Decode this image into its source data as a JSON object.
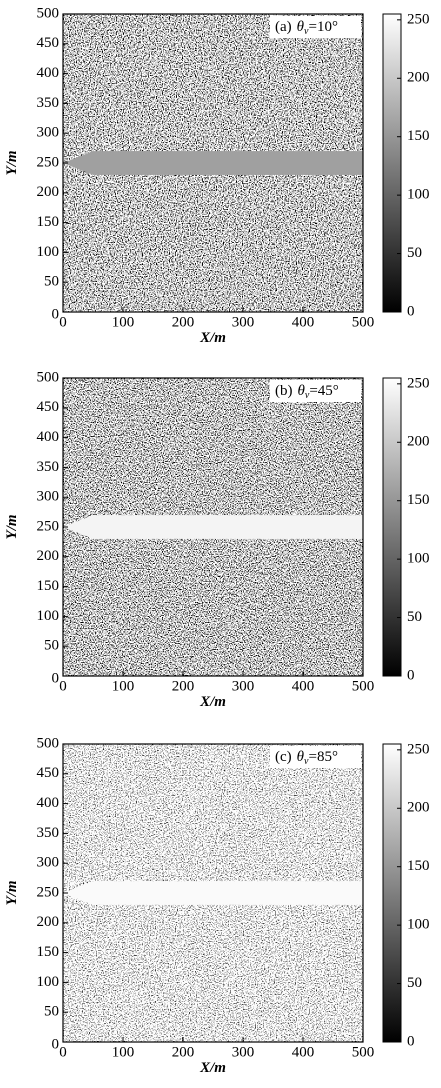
{
  "chart_data": [
    {
      "type": "heatmap",
      "panel_label": "(a)",
      "symbol": "θ",
      "symbol_subscript": "v",
      "parameter_value": "=10°",
      "xlabel": "X/m",
      "ylabel": "Y/m",
      "xlim": [
        0,
        500
      ],
      "xticks": [
        0,
        100,
        200,
        300,
        400,
        500
      ],
      "ylim": [
        0,
        500
      ],
      "yticks": [
        0,
        50,
        100,
        150,
        200,
        250,
        300,
        350,
        400,
        450,
        500
      ],
      "colorbar_lim": [
        0,
        255
      ],
      "colorbar_ticks": [
        0,
        50,
        100,
        150,
        200,
        250
      ],
      "colormap": "gray"
    },
    {
      "type": "heatmap",
      "panel_label": "(b)",
      "symbol": "θ",
      "symbol_subscript": "v",
      "parameter_value": "=45°",
      "xlabel": "X/m",
      "ylabel": "Y/m",
      "xlim": [
        0,
        500
      ],
      "xticks": [
        0,
        100,
        200,
        300,
        400,
        500
      ],
      "ylim": [
        0,
        500
      ],
      "yticks": [
        0,
        50,
        100,
        150,
        200,
        250,
        300,
        350,
        400,
        450,
        500
      ],
      "colorbar_lim": [
        0,
        255
      ],
      "colorbar_ticks": [
        0,
        50,
        100,
        150,
        200,
        250
      ],
      "colormap": "gray"
    },
    {
      "type": "heatmap",
      "panel_label": "(c)",
      "symbol": "θ",
      "symbol_subscript": "v",
      "parameter_value": "=85°",
      "xlabel": "X/m",
      "ylabel": "Y/m",
      "xlim": [
        0,
        500
      ],
      "xticks": [
        0,
        100,
        200,
        300,
        400,
        500
      ],
      "ylim": [
        0,
        500
      ],
      "yticks": [
        0,
        50,
        100,
        150,
        200,
        250,
        300,
        350,
        400,
        450,
        500
      ],
      "colorbar_lim": [
        0,
        255
      ],
      "colorbar_ticks": [
        0,
        50,
        100,
        150,
        200,
        250
      ],
      "colormap": "gray"
    }
  ]
}
